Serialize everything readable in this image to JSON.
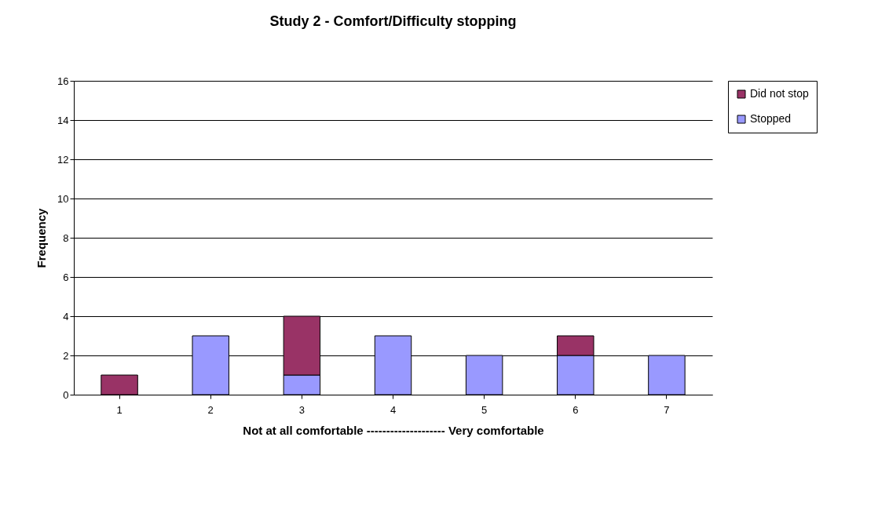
{
  "chart_data": {
    "type": "bar",
    "title": "Study 2 - Comfort/Difficulty stopping",
    "xlabel": "Not at all comfortable -------------------- Very comfortable",
    "ylabel": "Frequency",
    "categories": [
      "1",
      "2",
      "3",
      "4",
      "5",
      "6",
      "7"
    ],
    "series": [
      {
        "name": "Stopped",
        "color": "#9999ff",
        "values": [
          0,
          3,
          1,
          3,
          2,
          2,
          2
        ]
      },
      {
        "name": "Did not stop",
        "color": "#993366",
        "values": [
          1,
          0,
          3,
          0,
          0,
          1,
          0
        ]
      }
    ],
    "stacked": true,
    "ylim": [
      0,
      16
    ],
    "yticks": [
      0,
      2,
      4,
      6,
      8,
      10,
      12,
      14,
      16
    ],
    "grid": "y",
    "legend": "right"
  }
}
